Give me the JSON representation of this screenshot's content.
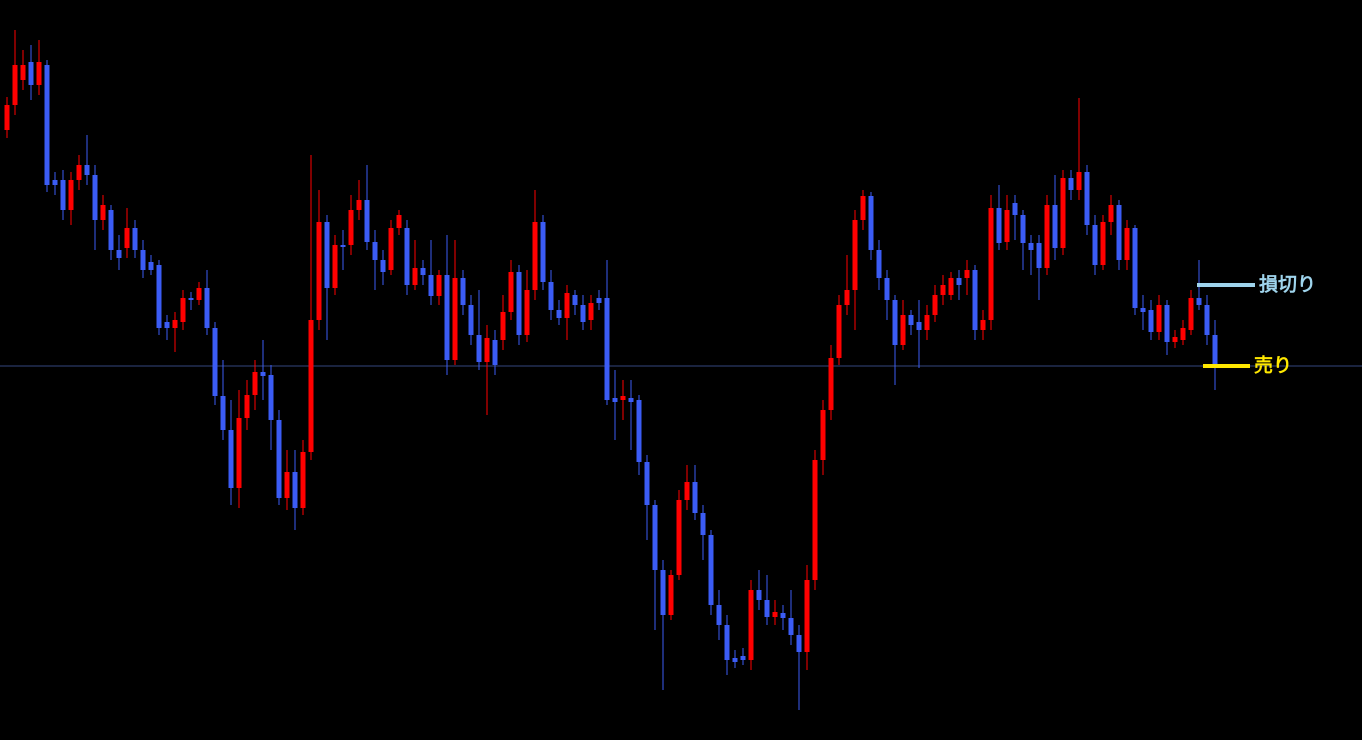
{
  "chart_data": {
    "type": "candlestick",
    "ylim": [
      0,
      740
    ],
    "up_color": "#ff0000",
    "down_color": "#3b5cf5",
    "candles": {
      "open": [
        610,
        635,
        660,
        678,
        655,
        675,
        560,
        560,
        530,
        560,
        575,
        565,
        520,
        530,
        490,
        492,
        512,
        490,
        478,
        475,
        418,
        412,
        418,
        442,
        440,
        452,
        412,
        344,
        310,
        252,
        322,
        345,
        368,
        365,
        320,
        242,
        268,
        232,
        288,
        420,
        518,
        452,
        495,
        495,
        530,
        540,
        498,
        480,
        470,
        512,
        512,
        455,
        472,
        465,
        444,
        465,
        380,
        462,
        435,
        405,
        378,
        400,
        400,
        428,
        468,
        405,
        450,
        518,
        458,
        430,
        422,
        445,
        435,
        420,
        442,
        442,
        342,
        340,
        342,
        340,
        278,
        235,
        170,
        125,
        165,
        240,
        258,
        227,
        205,
        135,
        115,
        82,
        84,
        80,
        150,
        140,
        123,
        127,
        122,
        105,
        88,
        160,
        280,
        330,
        382,
        435,
        450,
        520,
        544,
        490,
        462,
        440,
        395,
        425,
        418,
        410,
        425,
        445,
        445,
        462,
        462,
        470,
        410,
        420,
        532,
        498,
        537,
        525,
        497,
        497,
        472,
        535,
        492,
        562,
        550,
        568,
        515,
        475,
        518,
        535,
        480,
        512,
        432,
        430,
        408,
        435,
        398,
        400,
        410,
        442,
        435,
        405
      ],
      "high": [
        643,
        710,
        690,
        695,
        700,
        680,
        568,
        570,
        568,
        585,
        605,
        575,
        545,
        535,
        505,
        532,
        520,
        500,
        485,
        480,
        425,
        428,
        450,
        448,
        458,
        470,
        418,
        380,
        340,
        350,
        360,
        380,
        400,
        375,
        330,
        290,
        290,
        300,
        585,
        550,
        525,
        505,
        510,
        545,
        560,
        575,
        510,
        490,
        520,
        530,
        520,
        500,
        480,
        500,
        470,
        505,
        500,
        470,
        445,
        450,
        415,
        410,
        445,
        480,
        475,
        470,
        550,
        525,
        470,
        440,
        455,
        450,
        445,
        445,
        450,
        480,
        370,
        360,
        360,
        345,
        285,
        240,
        180,
        170,
        250,
        275,
        275,
        235,
        210,
        150,
        125,
        90,
        92,
        160,
        170,
        165,
        140,
        135,
        150,
        115,
        175,
        290,
        340,
        395,
        445,
        485,
        530,
        550,
        548,
        500,
        470,
        445,
        440,
        430,
        440,
        435,
        455,
        465,
        468,
        470,
        480,
        475,
        430,
        545,
        555,
        545,
        545,
        530,
        505,
        505,
        545,
        565,
        570,
        570,
        642,
        575,
        525,
        525,
        545,
        540,
        520,
        515,
        445,
        440,
        445,
        440,
        410,
        420,
        450,
        480,
        445,
        420
      ],
      "low": [
        602,
        625,
        650,
        640,
        645,
        548,
        545,
        520,
        515,
        550,
        555,
        490,
        510,
        480,
        470,
        482,
        482,
        462,
        465,
        405,
        400,
        388,
        410,
        430,
        435,
        405,
        335,
        300,
        235,
        232,
        310,
        330,
        340,
        290,
        235,
        230,
        210,
        225,
        280,
        410,
        400,
        445,
        470,
        485,
        520,
        490,
        450,
        455,
        465,
        505,
        445,
        450,
        455,
        435,
        435,
        365,
        375,
        425,
        395,
        370,
        325,
        365,
        390,
        420,
        395,
        398,
        440,
        450,
        420,
        415,
        400,
        425,
        410,
        410,
        430,
        335,
        300,
        320,
        290,
        265,
        200,
        110,
        50,
        120,
        160,
        230,
        220,
        180,
        125,
        100,
        65,
        72,
        75,
        70,
        130,
        115,
        115,
        110,
        95,
        30,
        70,
        150,
        265,
        320,
        375,
        425,
        410,
        510,
        480,
        450,
        420,
        355,
        390,
        405,
        372,
        400,
        418,
        435,
        440,
        440,
        445,
        400,
        400,
        410,
        490,
        490,
        500,
        470,
        465,
        440,
        465,
        480,
        485,
        540,
        540,
        505,
        465,
        470,
        505,
        470,
        470,
        425,
        410,
        400,
        400,
        385,
        392,
        395,
        405,
        430,
        395,
        350
      ],
      "close": [
        635,
        675,
        675,
        655,
        678,
        555,
        555,
        530,
        560,
        575,
        565,
        520,
        535,
        490,
        482,
        512,
        490,
        470,
        470,
        412,
        412,
        420,
        442,
        440,
        452,
        412,
        344,
        310,
        252,
        322,
        345,
        368,
        364,
        320,
        242,
        268,
        232,
        288,
        420,
        518,
        452,
        495,
        493,
        530,
        540,
        498,
        480,
        468,
        512,
        525,
        455,
        472,
        465,
        444,
        465,
        380,
        462,
        435,
        405,
        378,
        402,
        375,
        428,
        468,
        405,
        450,
        518,
        458,
        430,
        422,
        447,
        435,
        418,
        437,
        437,
        340,
        338,
        344,
        338,
        278,
        235,
        170,
        125,
        165,
        240,
        258,
        227,
        205,
        135,
        115,
        80,
        78,
        80,
        150,
        140,
        123,
        128,
        122,
        105,
        88,
        160,
        280,
        330,
        382,
        435,
        450,
        520,
        544,
        490,
        462,
        440,
        395,
        425,
        415,
        410,
        425,
        445,
        455,
        462,
        455,
        470,
        410,
        420,
        532,
        497,
        530,
        525,
        497,
        490,
        472,
        535,
        492,
        562,
        550,
        568,
        515,
        475,
        518,
        535,
        480,
        512,
        432,
        428,
        408,
        435,
        398,
        403,
        412,
        442,
        435,
        405,
        374
      ]
    },
    "hline": {
      "value": 374,
      "color": "#34467e"
    },
    "annotations": [
      {
        "text": "損切り",
        "value": 455,
        "color": "#9fd4ec"
      },
      {
        "text": "売り",
        "value": 374,
        "color": "#ffe800"
      }
    ]
  }
}
